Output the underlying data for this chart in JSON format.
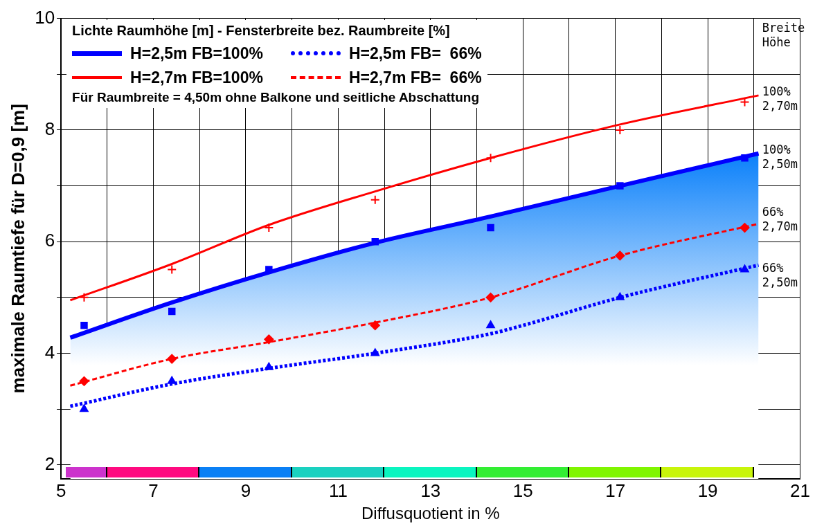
{
  "chart_data": {
    "type": "line",
    "xlabel": "Diffusquotient in %",
    "ylabel": "maximale Raumtiefe für D=0,9 [m]",
    "legend_title": "Lichte Raumhöhe [m] - Fensterbreite bez. Raumbreite [%]",
    "legend": "top left",
    "grid": true,
    "xlim": [
      5,
      21
    ],
    "xticks": [
      5,
      {
        "value": 6,
        "label": null
      },
      7,
      {
        "value": 8,
        "label": null
      },
      9,
      {
        "value": 10,
        "label": null
      },
      11,
      {
        "value": 12,
        "label": null
      },
      13,
      {
        "value": 14,
        "label": null
      },
      15,
      {
        "value": 16,
        "label": null
      },
      17,
      {
        "value": 18,
        "label": null
      },
      19,
      {
        "value": 20,
        "label": null
      },
      21
    ],
    "ylim": [
      1.75,
      10
    ],
    "yticks": [
      2,
      {
        "value": 3,
        "label": null
      },
      4,
      {
        "value": 5,
        "label": null
      },
      6,
      {
        "value": 7,
        "label": null
      },
      8,
      {
        "value": 9,
        "label": null
      },
      10
    ],
    "series": [
      {
        "name": "H=2,5m FB=100%",
        "type": "area",
        "color": "#0000ff",
        "line_style": "solid",
        "marker": "none",
        "x": [
          5.2,
          7.4,
          9.5,
          11.8,
          14.3,
          17.1,
          20.1
        ],
        "values": [
          4.28,
          4.91,
          5.45,
          5.98,
          6.45,
          7.0,
          7.58
        ]
      },
      {
        "name": "H=2,7m FB=100%",
        "type": "line",
        "color": "#ff0000",
        "line_style": "solid",
        "marker": "none",
        "x": [
          5.2,
          7.4,
          9.5,
          11.8,
          14.3,
          17.1,
          20.1
        ],
        "values": [
          4.95,
          5.6,
          6.3,
          6.9,
          7.5,
          8.1,
          8.62
        ]
      },
      {
        "name": "H=2,5m FB=  66%",
        "type": "line",
        "color": "#0000ff",
        "line_style": "dotted",
        "marker": "none",
        "x": [
          5.2,
          7.4,
          9.5,
          11.8,
          14.3,
          15,
          17.1,
          20.1
        ],
        "values": [
          3.05,
          3.45,
          3.73,
          4.0,
          4.35,
          4.5,
          5.0,
          5.58
        ]
      },
      {
        "name": "H=2,7m FB=  66%",
        "type": "line",
        "color": "#ff0000",
        "line_style": "dashed",
        "marker": "none",
        "x": [
          5.2,
          7.4,
          9.5,
          11.8,
          14.3,
          17.1,
          20.1
        ],
        "values": [
          3.42,
          3.9,
          4.2,
          4.55,
          5.0,
          5.75,
          6.32
        ]
      },
      {
        "type": "scatter",
        "color": "#0000ff",
        "marker": "square",
        "x": [
          5.5,
          7.4,
          9.5,
          11.8,
          14.3,
          17.1,
          19.8
        ],
        "values": [
          4.5,
          4.75,
          5.5,
          6.0,
          6.25,
          7.0,
          7.5
        ]
      },
      {
        "type": "scatter",
        "color": "#ff0000",
        "marker": "cross",
        "x": [
          5.5,
          7.4,
          9.5,
          11.8,
          14.3,
          17.1,
          19.8
        ],
        "values": [
          5.0,
          5.5,
          6.25,
          6.75,
          7.5,
          8.0,
          8.5
        ]
      },
      {
        "type": "scatter",
        "color": "#ff0000",
        "marker": "diamond",
        "x": [
          5.5,
          7.4,
          9.5,
          11.8,
          14.3,
          17.1,
          19.8
        ],
        "values": [
          3.5,
          3.9,
          4.25,
          4.5,
          5.0,
          5.75,
          6.25
        ]
      },
      {
        "type": "scatter",
        "color": "#0000ff",
        "marker": "triangle",
        "x": [
          5.5,
          7.4,
          9.5,
          11.8,
          14.3,
          17.1,
          19.8
        ],
        "values": [
          3.0,
          3.5,
          3.75,
          4.0,
          4.5,
          5.0,
          5.5
        ]
      }
    ],
    "annotations": [
      "Für Raumbreite = 4,50m ohne Balkone und seitliche Abschattung",
      "Breite\nHöhe",
      "100%\n2,70m",
      "100%\n2,50m",
      "66%\n2,70m",
      "66%\n2,50m"
    ]
  }
}
